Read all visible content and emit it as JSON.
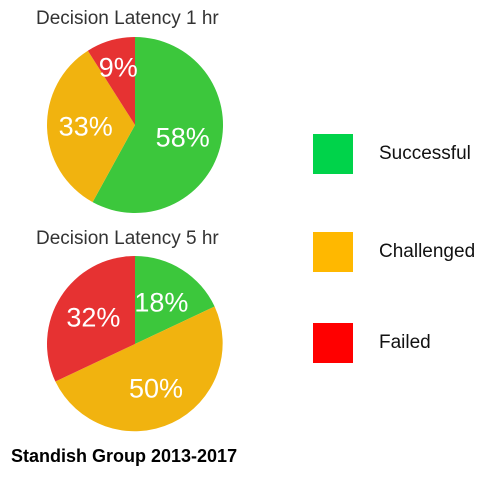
{
  "chart_data": [
    {
      "type": "pie",
      "title": "Decision Latency 1 hr",
      "slices": [
        {
          "label": "Successful",
          "value": 58,
          "text": "58%",
          "color": "#3cc73c"
        },
        {
          "label": "Challenged",
          "value": 33,
          "text": "33%",
          "color": "#f1b30f"
        },
        {
          "label": "Failed",
          "value": 9,
          "text": "9%",
          "color": "#e63232"
        }
      ]
    },
    {
      "type": "pie",
      "title": "Decision Latency 5 hr",
      "slices": [
        {
          "label": "Successful",
          "value": 18,
          "text": "18%",
          "color": "#3cc73c"
        },
        {
          "label": "Challenged",
          "value": 50,
          "text": "50%",
          "color": "#f1b30f"
        },
        {
          "label": "Failed",
          "value": 32,
          "text": "32%",
          "color": "#e63232"
        }
      ]
    }
  ],
  "legend": [
    {
      "label": "Successful",
      "color": "#00d34a"
    },
    {
      "label": "Challenged",
      "color": "#ffb800"
    },
    {
      "label": "Failed",
      "color": "#ff0000"
    }
  ],
  "footer": "Standish Group 2013-2017"
}
